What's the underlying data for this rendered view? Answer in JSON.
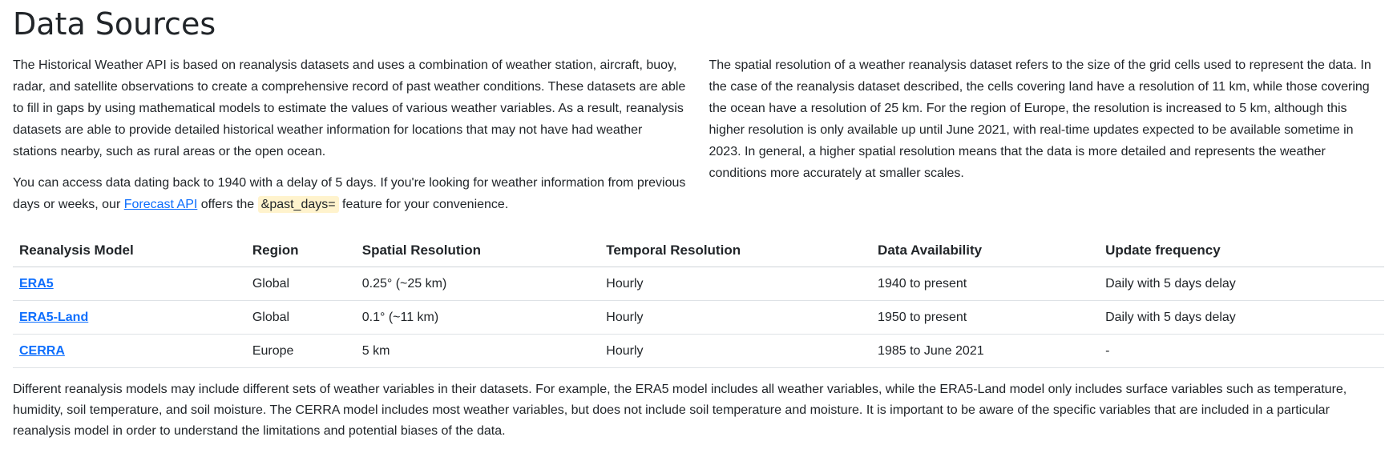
{
  "title": "Data Sources",
  "left": {
    "p1": "The Historical Weather API is based on reanalysis datasets and uses a combination of weather station, aircraft, buoy, radar, and satellite observations to create a comprehensive record of past weather conditions. These datasets are able to fill in gaps by using mathematical models to estimate the values of various weather variables. As a result, reanalysis datasets are able to provide detailed historical weather information for locations that may not have had weather stations nearby, such as rural areas or the open ocean.",
    "p2_before": "You can access data dating back to 1940 with a delay of 5 days. If you're looking for weather information from previous days or weeks, our ",
    "p2_link": "Forecast API",
    "p2_middle": " offers the ",
    "p2_code": "&past_days=",
    "p2_after": " feature for your convenience."
  },
  "right": {
    "p1": "The spatial resolution of a weather reanalysis dataset refers to the size of the grid cells used to represent the data. In the case of the reanalysis dataset described, the cells covering land have a resolution of 11 km, while those covering the ocean have a resolution of 25 km. For the region of Europe, the resolution is increased to 5 km, although this higher resolution is only available up until June 2021, with real-time updates expected to be available sometime in 2023. In general, a higher spatial resolution means that the data is more detailed and represents the weather conditions more accurately at smaller scales."
  },
  "table": {
    "headers": [
      "Reanalysis Model",
      "Region",
      "Spatial Resolution",
      "Temporal Resolution",
      "Data Availability",
      "Update frequency"
    ],
    "rows": [
      [
        "ERA5",
        "Global",
        "0.25° (~25 km)",
        "Hourly",
        "1940 to present",
        "Daily with 5 days delay"
      ],
      [
        "ERA5-Land",
        "Global",
        "0.1° (~11 km)",
        "Hourly",
        "1950 to present",
        "Daily with 5 days delay"
      ],
      [
        "CERRA",
        "Europe",
        "5 km",
        "Hourly",
        "1985 to June 2021",
        "-"
      ]
    ]
  },
  "note": "Different reanalysis models may include different sets of weather variables in their datasets. For example, the ERA5 model includes all weather variables, while the ERA5-Land model only includes surface variables such as temperature, humidity, soil temperature, and soil moisture. The CERRA model includes most weather variables, but does not include soil temperature and moisture. It is important to be aware of the specific variables that are included in a particular reanalysis model in order to understand the limitations and potential biases of the data."
}
